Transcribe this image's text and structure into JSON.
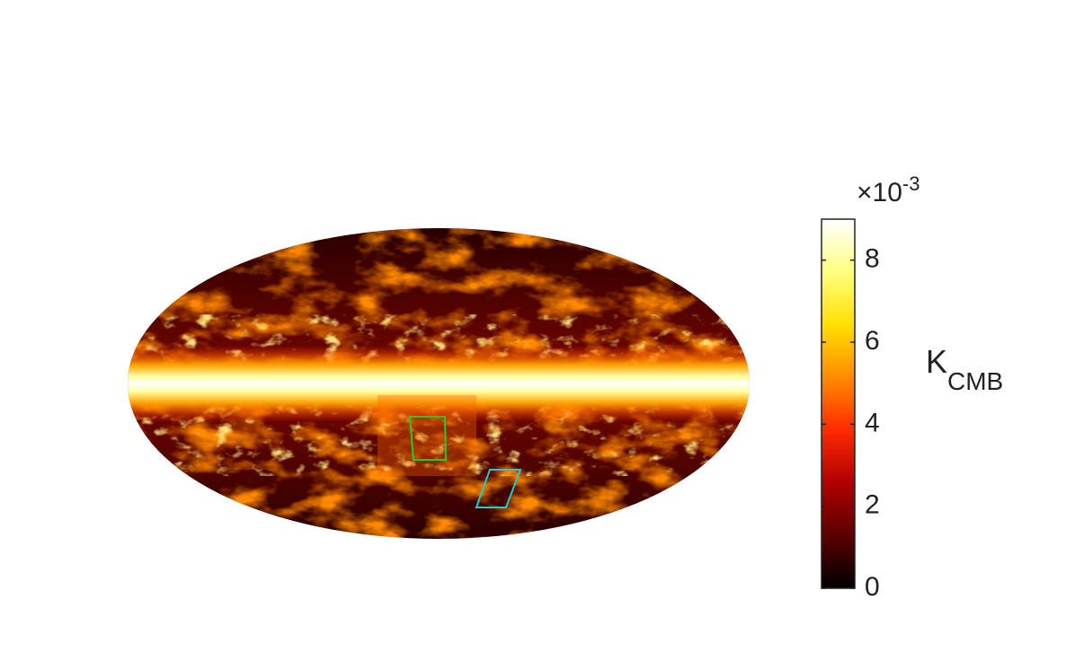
{
  "colorbar": {
    "lim": [
      0,
      9
    ],
    "ticks": [
      0,
      2,
      4,
      6,
      8
    ],
    "colormap": [
      "#000000",
      "#5a0000",
      "#b00000",
      "#ff2a00",
      "#ff8c00",
      "#ffe000",
      "#ffff80",
      "#ffffff"
    ],
    "multiplier": {
      "base": "×10",
      "exponent": "-3"
    },
    "label": {
      "main": "K",
      "sub": "CMB"
    }
  }
}
